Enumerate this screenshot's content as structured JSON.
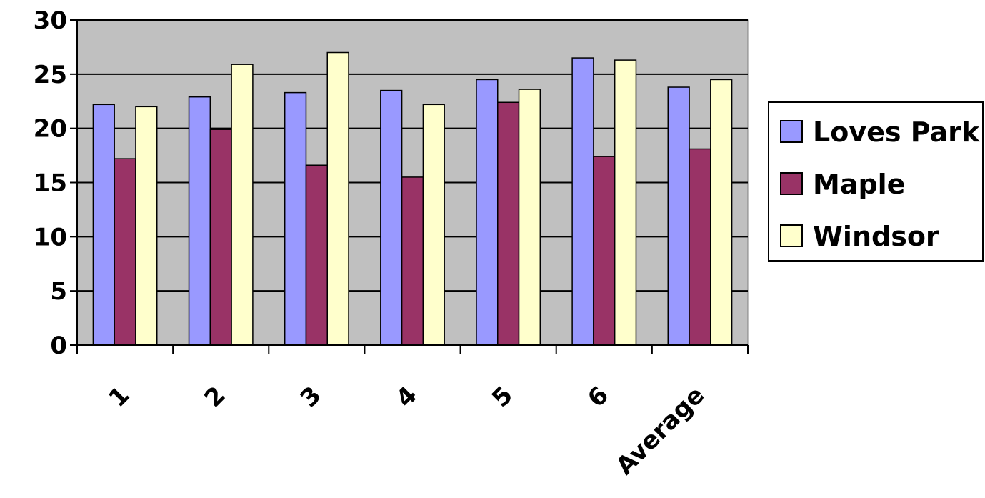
{
  "chart_data": {
    "type": "bar",
    "categories": [
      "1",
      "2",
      "3",
      "4",
      "5",
      "6",
      "Average"
    ],
    "series": [
      {
        "name": "Loves Park",
        "color": "#9999ff",
        "values": [
          22.2,
          22.9,
          23.3,
          23.5,
          24.5,
          26.5,
          23.8
        ]
      },
      {
        "name": "Maple",
        "color": "#993366",
        "values": [
          17.2,
          19.9,
          16.6,
          15.5,
          22.4,
          17.4,
          18.1
        ]
      },
      {
        "name": "Windsor",
        "color": "#ffffcc",
        "values": [
          22.0,
          25.9,
          27.0,
          22.2,
          23.6,
          26.3,
          24.5
        ]
      }
    ],
    "ylim": [
      0,
      30
    ],
    "yticks": [
      0,
      5,
      10,
      15,
      20,
      25,
      30
    ],
    "grid": true,
    "plot_background": "#c0c0c0",
    "legend_position": "right"
  }
}
